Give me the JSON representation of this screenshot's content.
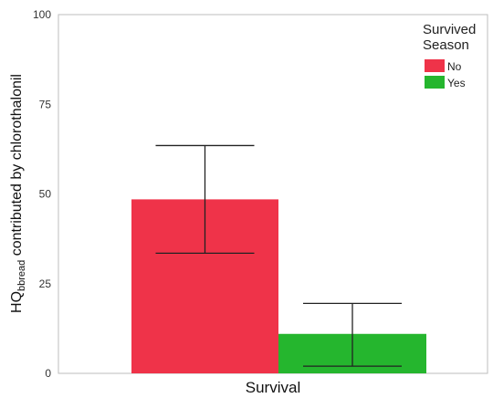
{
  "chart_data": {
    "type": "bar",
    "categories": [
      "Survival"
    ],
    "series": [
      {
        "name": "No",
        "values": [
          48.5
        ],
        "error": [
          [
            33.5,
            63.5
          ]
        ],
        "color": "#ef3349"
      },
      {
        "name": "Yes",
        "values": [
          11
        ],
        "error": [
          [
            2,
            19.5
          ]
        ],
        "color": "#25b62e"
      }
    ],
    "xlabel": "Survival",
    "ylabel_pre": "HQ",
    "ylabel_sub": "bbread",
    "ylabel_post": " contributed by chlorothalonil",
    "ylim": [
      0,
      100
    ],
    "yticks": [
      "0",
      "25",
      "50",
      "75",
      "100"
    ],
    "legend": {
      "title_line1": "Survived",
      "title_line2": "Season",
      "placement": "top-right"
    },
    "grid": false
  }
}
